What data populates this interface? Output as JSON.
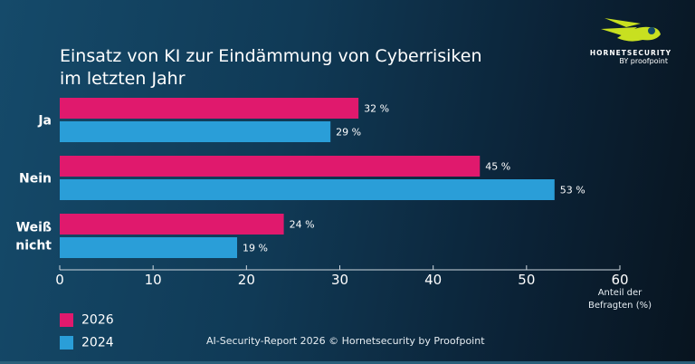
{
  "logo": {
    "brand": "HORNETSECURITY",
    "by": "BY proofpoint"
  },
  "footer": "AI-Security-Report 2026 © Hornetsecurity by Proofpoint",
  "chart_data": {
    "type": "bar",
    "orientation": "horizontal",
    "title_lines": [
      "Einsatz von KI zur Eindämmung von Cyberrisiken",
      "im letzten Jahr"
    ],
    "categories": [
      [
        "Ja"
      ],
      [
        "Nein"
      ],
      [
        "Weiß",
        "nicht"
      ]
    ],
    "series": [
      {
        "name": "2026",
        "color": "#e0196d",
        "values": [
          32,
          45,
          24
        ]
      },
      {
        "name": "2024",
        "color": "#2a9ed8",
        "values": [
          29,
          53,
          19
        ]
      }
    ],
    "value_suffix": " %",
    "xlabel_lines": [
      "Anteil der",
      "Befragten (%)"
    ],
    "xlim": [
      0,
      60
    ],
    "xticks": [
      "0",
      "10",
      "20",
      "30",
      "40",
      "50",
      "60"
    ],
    "grid": false,
    "legend_position": "bottom-left"
  }
}
